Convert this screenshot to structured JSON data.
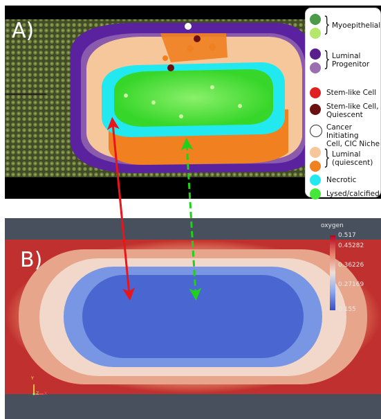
{
  "panel_a": {
    "label": "A)",
    "legend": [
      {
        "text": "Myoepithelial",
        "colors": [
          "#4a9a4a",
          "#b5e86a"
        ]
      },
      {
        "text": "Luminal\nProgenitor",
        "colors": [
          "#5a1f8f",
          "#9a6fb0"
        ]
      },
      {
        "text": "Stem-like Cell",
        "colors": [
          "#e02020"
        ]
      },
      {
        "text": "Stem-like Cell,\nQuiescent",
        "colors": [
          "#6a1010"
        ]
      },
      {
        "text": "Cancer Initiating\nCell, CIC Niche",
        "colors": [
          "#ffffff"
        ]
      },
      {
        "text": "Luminal\n(quiescent)",
        "colors": [
          "#f6c79a",
          "#f08020"
        ]
      },
      {
        "text": "Necrotic",
        "colors": [
          "#22e8f0"
        ]
      },
      {
        "text": "Lysed/calcified",
        "colors": [
          "#44e838"
        ]
      }
    ]
  },
  "panel_b": {
    "label": "B)",
    "colorbar": {
      "title": "oxygen",
      "ticks": [
        "0.517",
        "0.45282",
        "0.36226",
        "0.27169",
        "0.155"
      ],
      "gradient": [
        "#b40426",
        "#dd5f4b",
        "#f4c6ae",
        "#c5d6f2",
        "#7b9ff9",
        "#3b4cc0"
      ]
    },
    "axes_glyph": {
      "y": "Y",
      "z": "Z",
      "x": "X"
    }
  },
  "arrows": {
    "red": "#e8151b",
    "green": "#1fd11a"
  }
}
